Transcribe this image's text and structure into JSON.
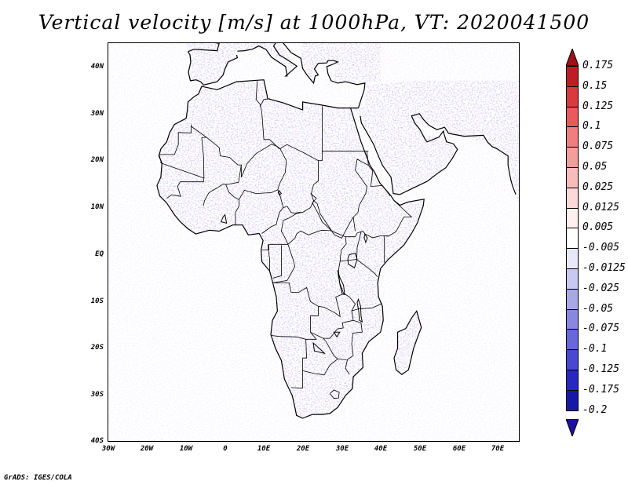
{
  "title": "Vertical velocity [m/s] at 1000hPa, VT: 2020041500",
  "credit": "GrADS: IGES/COLA",
  "y_axis_labels": [
    "40N",
    "30N",
    "20N",
    "10N",
    "EQ",
    "10S",
    "20S",
    "30S",
    "40S"
  ],
  "x_axis_labels": [
    "30W",
    "20W",
    "10W",
    "0",
    "10E",
    "20E",
    "30E",
    "40E",
    "50E",
    "60E",
    "70E"
  ],
  "colorbar": {
    "labels": [
      "0.175",
      "0.15",
      "0.125",
      "0.1",
      "0.075",
      "0.05",
      "0.025",
      "0.0125",
      "0.005",
      "-0.005",
      "-0.0125",
      "-0.025",
      "-0.05",
      "-0.075",
      "-0.1",
      "-0.125",
      "-0.175",
      "-0.2"
    ],
    "colors": [
      "#a01018",
      "#c01c24",
      "#d83a3e",
      "#e85a5c",
      "#f07e7e",
      "#f49e9c",
      "#f8bcba",
      "#fcd8d6",
      "#fff0f0",
      "#ffffff",
      "#e8e8f8",
      "#c8c8f0",
      "#a8a8e8",
      "#8888e0",
      "#6868d8",
      "#4848d0",
      "#2828c0",
      "#1818a8",
      "#2010a0"
    ]
  },
  "map": {
    "lon_range": [
      -30,
      76
    ],
    "lat_range": [
      -40,
      45
    ],
    "field": "vertical velocity (omega-like) at 1000 hPa",
    "land_color": "#ffffff",
    "negative_color": "#6a6af0",
    "positive_color": "#f07a7a"
  }
}
